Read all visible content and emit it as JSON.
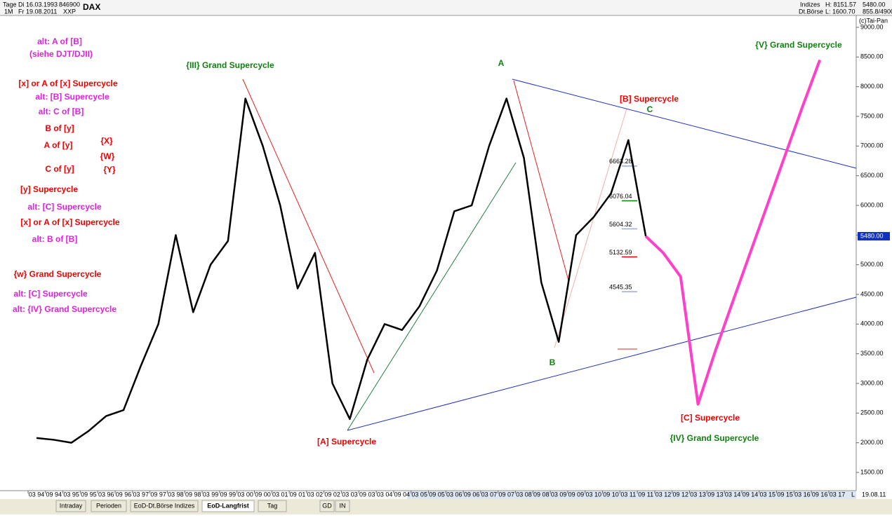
{
  "header": {
    "period": "Tage",
    "from": "Di 16.03.1993",
    "count": "846900",
    "interval": "1M",
    "to": "Fr 19.08.2011",
    "code": "XXP",
    "symbol": "DAX",
    "group": "Indizes",
    "high": "H: 8151.57",
    "close": "5480.00",
    "exchange": "Dt.Börse",
    "low": "L: 1600.70",
    "zoom": "855.8/4900",
    "copyright": "(c)Tai-Pan"
  },
  "chart_data": {
    "type": "line",
    "categories": [
      "03 94",
      "09 94",
      "03 95",
      "09 95",
      "03 96",
      "09 96",
      "03 97",
      "09 97",
      "03 98",
      "09 98",
      "03 99",
      "09 99",
      "03 00",
      "09 00",
      "03 01",
      "09 01",
      "03 02",
      "09 02",
      "03 03",
      "09 03",
      "03 04",
      "09 04",
      "03 05",
      "09 05",
      "03 06",
      "09 06",
      "03 07",
      "09 07",
      "03 08",
      "09 08",
      "03 09",
      "09 09",
      "03 10",
      "09 10",
      "03 11",
      "09 11",
      "03 12",
      "09 12",
      "03 13",
      "09 13",
      "03 14",
      "09 14",
      "03 15",
      "09 15",
      "03 16",
      "09 16",
      "03 17"
    ],
    "series": [
      {
        "name": "DAX",
        "color": "#000000",
        "values": [
          2080,
          2050,
          2000,
          2200,
          2450,
          2550,
          3300,
          4000,
          5500,
          4200,
          5000,
          5400,
          7800,
          7000,
          6000,
          4600,
          5200,
          3000,
          2400,
          3400,
          4000,
          3900,
          4300,
          4900,
          5900,
          6000,
          7000,
          7800,
          6800,
          4700,
          3700,
          5500,
          5800,
          6200,
          7100,
          5480,
          null,
          null,
          null,
          null,
          null,
          null,
          null,
          null,
          null,
          null,
          null
        ]
      },
      {
        "name": "Projection",
        "color": "#ff40c8",
        "values": [
          null,
          null,
          null,
          null,
          null,
          null,
          null,
          null,
          null,
          null,
          null,
          null,
          null,
          null,
          null,
          null,
          null,
          null,
          null,
          null,
          null,
          null,
          null,
          null,
          null,
          null,
          null,
          null,
          null,
          null,
          null,
          null,
          null,
          null,
          null,
          5480,
          5200,
          4800,
          2650,
          3550,
          4380,
          5200,
          6020,
          6840,
          7660,
          8450,
          null
        ]
      }
    ],
    "ylim": [
      1500,
      9000
    ],
    "yticks": [
      {
        "value": 1500,
        "label": "1500.00"
      },
      {
        "value": 2000,
        "label": "2000.00"
      },
      {
        "value": 2500,
        "label": "2500.00"
      },
      {
        "value": 3000,
        "label": "3000.00"
      },
      {
        "value": 3500,
        "label": "3500.00"
      },
      {
        "value": 4000,
        "label": "4000.00"
      },
      {
        "value": 4500,
        "label": "4500.00"
      },
      {
        "value": 5000,
        "label": "5000.00"
      },
      {
        "value": 5500,
        "label": "5500.00"
      },
      {
        "value": 6000,
        "label": "6000.00"
      },
      {
        "value": 6500,
        "label": "6500.00"
      },
      {
        "value": 7000,
        "label": "7000.00"
      },
      {
        "value": 7500,
        "label": "7500.00"
      },
      {
        "value": 8000,
        "label": "8000.00"
      },
      {
        "value": 8500,
        "label": "8500.00"
      },
      {
        "value": 9000,
        "label": "9000.00"
      }
    ],
    "levels": [
      6663.28,
      6076.04,
      5604.32,
      5132.59,
      4545.35
    ],
    "last_price": {
      "value": 5480,
      "label": "5480.00"
    }
  },
  "annotations": [
    {
      "text": "alt: A of [B]",
      "color": "#e020e0"
    },
    {
      "text": "(siehe DJT/DJII)",
      "color": "#e020e0"
    },
    {
      "text": "[x] or A of [x] Supercycle",
      "color": "#ee0000"
    },
    {
      "text": "alt: [B] Supercycle",
      "color": "#e020e0"
    },
    {
      "text": "alt: C of [B]",
      "color": "#e020e0"
    },
    {
      "text": "B of [y]",
      "color": "#ee0000"
    },
    {
      "text": "A of [y]",
      "color": "#ee0000"
    },
    {
      "text": "C of [y]",
      "color": "#ee0000"
    },
    {
      "text": "{X}",
      "color": "#ee0000"
    },
    {
      "text": "{W}",
      "color": "#ee0000"
    },
    {
      "text": "{Y}",
      "color": "#ee0000"
    },
    {
      "text": "[y] Supercycle",
      "color": "#ee0000"
    },
    {
      "text": "alt: [C] Supercycle",
      "color": "#e020e0"
    },
    {
      "text": "[x] or A of [x] Supercycle",
      "color": "#ee0000"
    },
    {
      "text": "alt: B of [B]",
      "color": "#e020e0"
    },
    {
      "text": "{w} Grand Supercycle",
      "color": "#ee0000"
    },
    {
      "text": "alt: [C] Supercycle",
      "color": "#e020e0"
    },
    {
      "text": "alt: {IV} Grand Supercycle",
      "color": "#e020e0"
    },
    {
      "text": "{III} Grand Supercycle",
      "color": "#108010"
    },
    {
      "text": "A",
      "color": "#108010"
    },
    {
      "text": "[B] Supercycle",
      "color": "#ee0000"
    },
    {
      "text": "C",
      "color": "#108010"
    },
    {
      "text": "B",
      "color": "#108010"
    },
    {
      "text": "[A] Supercycle",
      "color": "#ee0000"
    },
    {
      "text": "[C] Supercycle",
      "color": "#ee0000"
    },
    {
      "text": "{IV} Grand Supercycle",
      "color": "#108010"
    },
    {
      "text": "{V} Grand Supercycle",
      "color": "#108010"
    }
  ],
  "tabs": [
    "Intraday",
    "Perioden",
    "EoD-Dt.Börse Indizes",
    "EoD-Langfrist",
    "Tag",
    "GD",
    "IN"
  ],
  "footer": {
    "date": "19.08.11",
    "mode": "L"
  }
}
